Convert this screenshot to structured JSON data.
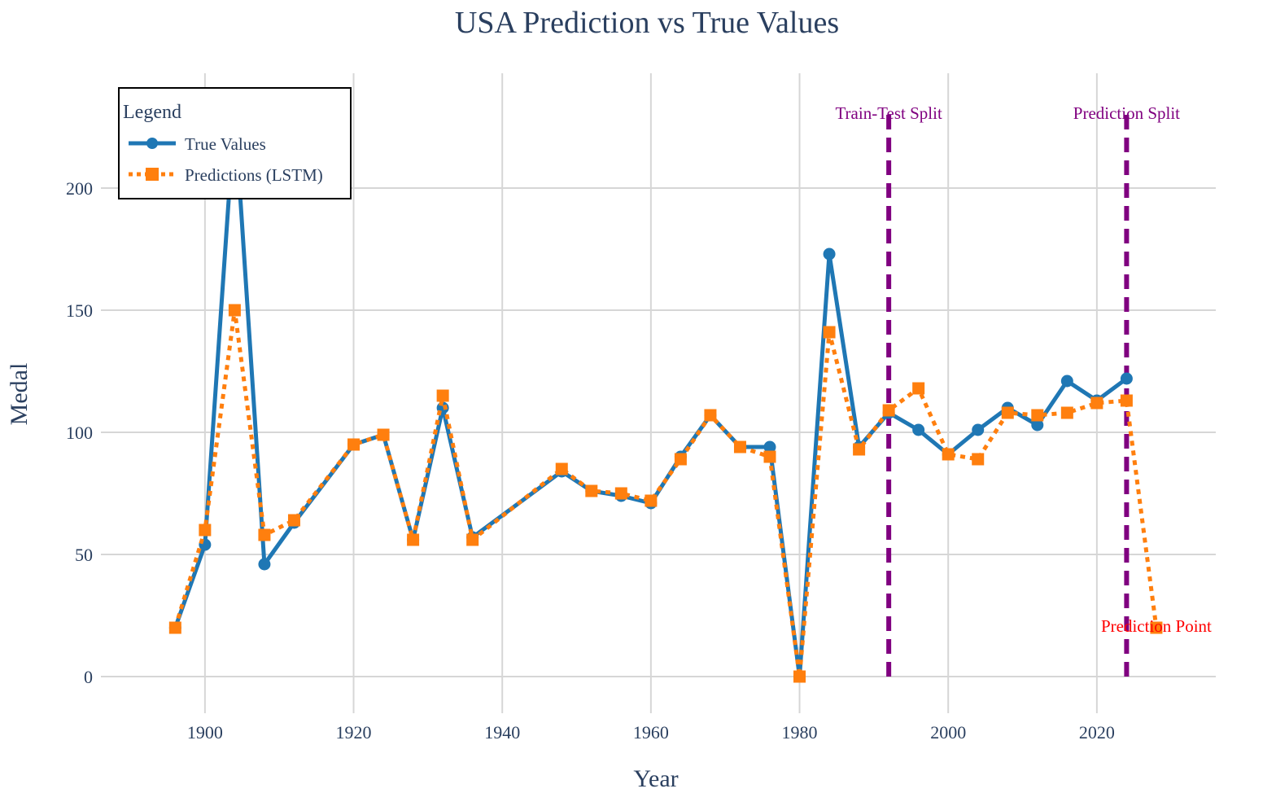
{
  "chart_data": {
    "type": "line",
    "title": "USA Prediction vs True Values",
    "xlabel": "Year",
    "ylabel": "Medal",
    "xlim": [
      1886,
      2036
    ],
    "ylim": [
      -15,
      247
    ],
    "x_ticks": [
      1900,
      1920,
      1940,
      1960,
      1980,
      2000,
      2020
    ],
    "y_ticks": [
      0,
      50,
      100,
      150,
      200
    ],
    "grid": true,
    "legend": {
      "title": "Legend",
      "placement": "top-left",
      "entries": [
        "True Values",
        "Predictions (LSTM)"
      ]
    },
    "series": [
      {
        "name": "True Values",
        "color": "#1f77b4",
        "style": "solid",
        "marker": "circle",
        "x": [
          1896,
          1900,
          1904,
          1908,
          1912,
          1920,
          1924,
          1928,
          1932,
          1936,
          1948,
          1952,
          1956,
          1960,
          1964,
          1968,
          1972,
          1976,
          1980,
          1984,
          1988,
          1992,
          1996,
          2000,
          2004,
          2008,
          2012,
          2016,
          2020,
          2024
        ],
        "y": [
          20,
          54,
          231,
          46,
          63,
          95,
          99,
          56,
          110,
          57,
          84,
          76,
          74,
          71,
          90,
          107,
          94,
          94,
          0,
          173,
          94,
          108,
          101,
          91,
          101,
          110,
          103,
          121,
          113,
          122
        ]
      },
      {
        "name": "Predictions (LSTM)",
        "color": "#ff7f0e",
        "style": "dot",
        "marker": "square",
        "x": [
          1896,
          1900,
          1904,
          1908,
          1912,
          1920,
          1924,
          1928,
          1932,
          1936,
          1948,
          1952,
          1956,
          1960,
          1964,
          1968,
          1972,
          1976,
          1980,
          1984,
          1988,
          1992,
          1996,
          2000,
          2004,
          2008,
          2012,
          2016,
          2020,
          2024,
          2028
        ],
        "y": [
          20,
          60,
          150,
          58,
          64,
          95,
          99,
          56,
          115,
          56,
          85,
          76,
          75,
          72,
          89,
          107,
          94,
          90,
          0,
          141,
          93,
          109,
          118,
          91,
          89,
          108,
          107,
          108,
          112,
          113,
          20
        ]
      }
    ],
    "vlines": [
      {
        "x": 1992,
        "label": "Train-Test Split",
        "color": "#800080"
      },
      {
        "x": 2024,
        "label": "Prediction Split",
        "color": "#800080"
      }
    ],
    "annotations": [
      {
        "x": 2028,
        "y": 20,
        "text": "Prediction Point",
        "color": "#ff0000"
      }
    ]
  }
}
